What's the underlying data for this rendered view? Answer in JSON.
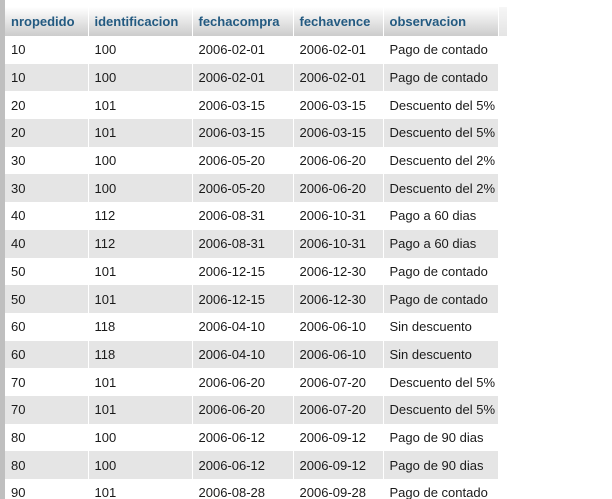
{
  "table": {
    "columns": [
      "nropedido",
      "identificacion",
      "fechacompra",
      "fechavence",
      "observacion"
    ],
    "rows": [
      [
        "10",
        "100",
        "2006-02-01",
        "2006-02-01",
        "Pago de contado"
      ],
      [
        "10",
        "100",
        "2006-02-01",
        "2006-02-01",
        "Pago de contado"
      ],
      [
        "20",
        "101",
        "2006-03-15",
        "2006-03-15",
        "Descuento del 5%"
      ],
      [
        "20",
        "101",
        "2006-03-15",
        "2006-03-15",
        "Descuento del 5%"
      ],
      [
        "30",
        "100",
        "2006-05-20",
        "2006-06-20",
        "Descuento del 2%"
      ],
      [
        "30",
        "100",
        "2006-05-20",
        "2006-06-20",
        "Descuento del 2%"
      ],
      [
        "40",
        "112",
        "2006-08-31",
        "2006-10-31",
        "Pago a 60 dias"
      ],
      [
        "40",
        "112",
        "2006-08-31",
        "2006-10-31",
        "Pago a 60 dias"
      ],
      [
        "50",
        "101",
        "2006-12-15",
        "2006-12-30",
        "Pago de contado"
      ],
      [
        "50",
        "101",
        "2006-12-15",
        "2006-12-30",
        "Pago de contado"
      ],
      [
        "60",
        "118",
        "2006-04-10",
        "2006-06-10",
        "Sin descuento"
      ],
      [
        "60",
        "118",
        "2006-04-10",
        "2006-06-10",
        "Sin descuento"
      ],
      [
        "70",
        "101",
        "2006-06-20",
        "2006-07-20",
        "Descuento del 5%"
      ],
      [
        "70",
        "101",
        "2006-06-20",
        "2006-07-20",
        "Descuento del 5%"
      ],
      [
        "80",
        "100",
        "2006-06-12",
        "2006-09-12",
        "Pago de 90 dias"
      ],
      [
        "80",
        "100",
        "2006-06-12",
        "2006-09-12",
        "Pago de 90 dias"
      ],
      [
        "90",
        "101",
        "2006-08-28",
        "2006-09-28",
        "Pago de contado"
      ]
    ]
  },
  "colors": {
    "header_text": "#235a81",
    "row_alt": "#e5e5e5"
  }
}
